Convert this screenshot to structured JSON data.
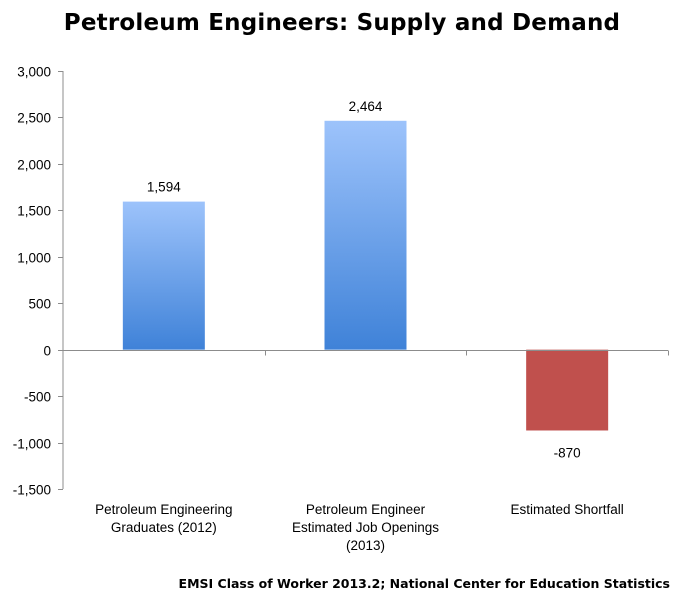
{
  "chart_data": {
    "type": "bar",
    "title": "Petroleum Engineers: Supply and Demand",
    "source": "EMSI Class of Worker 2013.2; National Center for Education Statistics",
    "categories": [
      [
        "Petroleum Engineering",
        "Graduates (2012)"
      ],
      [
        "Petroleum Engineer",
        "Estimated Job Openings",
        "(2013)"
      ],
      [
        "Estimated Shortfall"
      ]
    ],
    "values": [
      1594,
      2464,
      -870
    ],
    "data_labels": [
      "1,594",
      "2,464",
      "-870"
    ],
    "colors": [
      "blue",
      "blue",
      "red"
    ],
    "palette": {
      "blue_top": "#9dc3fb",
      "blue_bottom": "#3f82d8",
      "red": "#c0504d",
      "axis": "#8c8c8c"
    },
    "ylim": [
      -1500,
      3000
    ],
    "yticks": [
      -1500,
      -1000,
      -500,
      0,
      500,
      1000,
      1500,
      2000,
      2500,
      3000
    ],
    "ytick_labels": [
      "-1,500",
      "-1,000",
      "-500",
      "0",
      "500",
      "1,000",
      "1,500",
      "2,000",
      "2,500",
      "3,000"
    ],
    "grid": false
  }
}
